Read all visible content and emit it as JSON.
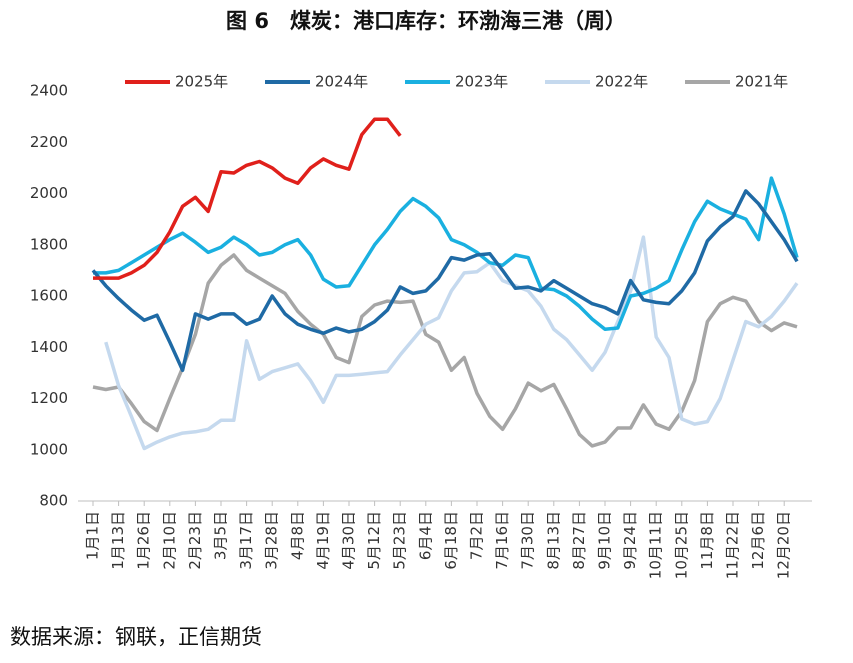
{
  "chart_data": {
    "type": "line",
    "title": "图 6　煤炭：港口库存：环渤海三港（周）",
    "source": "数据来源：钢联，正信期货",
    "categories": [
      "1月1日",
      null,
      "1月13日",
      null,
      "1月26日",
      null,
      "2月10日",
      null,
      "2月23日",
      null,
      "3月5日",
      null,
      "3月17日",
      null,
      "3月28日",
      null,
      "4月8日",
      null,
      "4月19日",
      null,
      "4月30日",
      null,
      "5月12日",
      null,
      "5月23日",
      null,
      "6月4日",
      null,
      "6月18日",
      null,
      "7月2日",
      null,
      "7月16日",
      null,
      "7月30日",
      null,
      "8月13日",
      null,
      "8月27日",
      null,
      "9月10日",
      null,
      "9月24日",
      null,
      "10月11日",
      null,
      "10月25日",
      null,
      "11月8日",
      null,
      "11月22日",
      null,
      "12月6日",
      null,
      "12月20日",
      null
    ],
    "ylim": [
      800,
      2400
    ],
    "yticks": [
      800,
      1000,
      1200,
      1400,
      1600,
      1800,
      2000,
      2200,
      2400
    ],
    "legend": "top",
    "series": [
      {
        "name": "2025年",
        "color": "#e0201b",
        "values": [
          1670,
          1670,
          1670,
          1690,
          1720,
          1770,
          1850,
          1950,
          1985,
          1930,
          2085,
          2080,
          2110,
          2125,
          2100,
          2060,
          2040,
          2100,
          2135,
          2110,
          2095,
          2230,
          2290,
          2290,
          2225,
          null,
          null,
          null,
          null,
          null,
          null,
          null,
          null,
          null,
          null,
          null,
          null,
          null,
          null,
          null,
          null,
          null,
          null,
          null,
          null,
          null,
          null,
          null,
          null,
          null,
          null,
          null,
          null,
          null,
          null,
          null
        ]
      },
      {
        "name": "2024年",
        "color": "#1f6aa5",
        "values": [
          1700,
          1640,
          1590,
          1545,
          1505,
          1525,
          1420,
          1310,
          1530,
          1510,
          1530,
          1530,
          1490,
          1510,
          1600,
          1530,
          1490,
          1470,
          1455,
          1475,
          1460,
          1470,
          1500,
          1545,
          1635,
          1610,
          1620,
          1670,
          1750,
          1740,
          1760,
          1765,
          1700,
          1630,
          1635,
          1620,
          1660,
          1630,
          1600,
          1570,
          1555,
          1530,
          1660,
          1585,
          1575,
          1570,
          1620,
          1690,
          1815,
          1870,
          1910,
          2010,
          1960,
          1890,
          1820,
          1735
        ]
      },
      {
        "name": "2023年",
        "color": "#1ab0e0",
        "values": [
          1690,
          1690,
          1700,
          1730,
          1760,
          1790,
          1820,
          1845,
          1810,
          1770,
          1790,
          1830,
          1800,
          1760,
          1770,
          1800,
          1820,
          1760,
          1665,
          1635,
          1640,
          1720,
          1800,
          1860,
          1930,
          1980,
          1950,
          1905,
          1820,
          1800,
          1770,
          1730,
          1720,
          1760,
          1750,
          1630,
          1625,
          1600,
          1560,
          1510,
          1470,
          1475,
          1600,
          1610,
          1630,
          1660,
          1780,
          1890,
          1970,
          1940,
          1920,
          1900,
          1820,
          2060,
          1920,
          1750
        ]
      },
      {
        "name": "2022年",
        "color": "#c5d9ee",
        "values": [
          null,
          1420,
          1250,
          1130,
          1005,
          1030,
          1050,
          1065,
          1070,
          1080,
          1115,
          1115,
          1425,
          1275,
          1305,
          1320,
          1335,
          1270,
          1185,
          1290,
          1290,
          1295,
          1300,
          1305,
          1370,
          1430,
          1490,
          1515,
          1620,
          1690,
          1695,
          1730,
          1660,
          1640,
          1620,
          1560,
          1470,
          1430,
          1370,
          1310,
          1380,
          1500,
          1620,
          1830,
          1440,
          1360,
          1120,
          1100,
          1110,
          1200,
          1350,
          1500,
          1480,
          1520,
          1580,
          1650
        ]
      },
      {
        "name": "2021年",
        "color": "#a6a6a6",
        "values": [
          1245,
          1235,
          1245,
          1180,
          1110,
          1075,
          1200,
          1320,
          1450,
          1650,
          1720,
          1760,
          1700,
          1670,
          1640,
          1610,
          1540,
          1490,
          1450,
          1360,
          1340,
          1520,
          1565,
          1580,
          1575,
          1580,
          1450,
          1420,
          1310,
          1360,
          1220,
          1130,
          1080,
          1160,
          1260,
          1230,
          1255,
          1160,
          1060,
          1015,
          1030,
          1085,
          1085,
          1175,
          1100,
          1080,
          1150,
          1270,
          1500,
          1570,
          1595,
          1580,
          1500,
          1465,
          1495,
          1480
        ]
      }
    ]
  }
}
